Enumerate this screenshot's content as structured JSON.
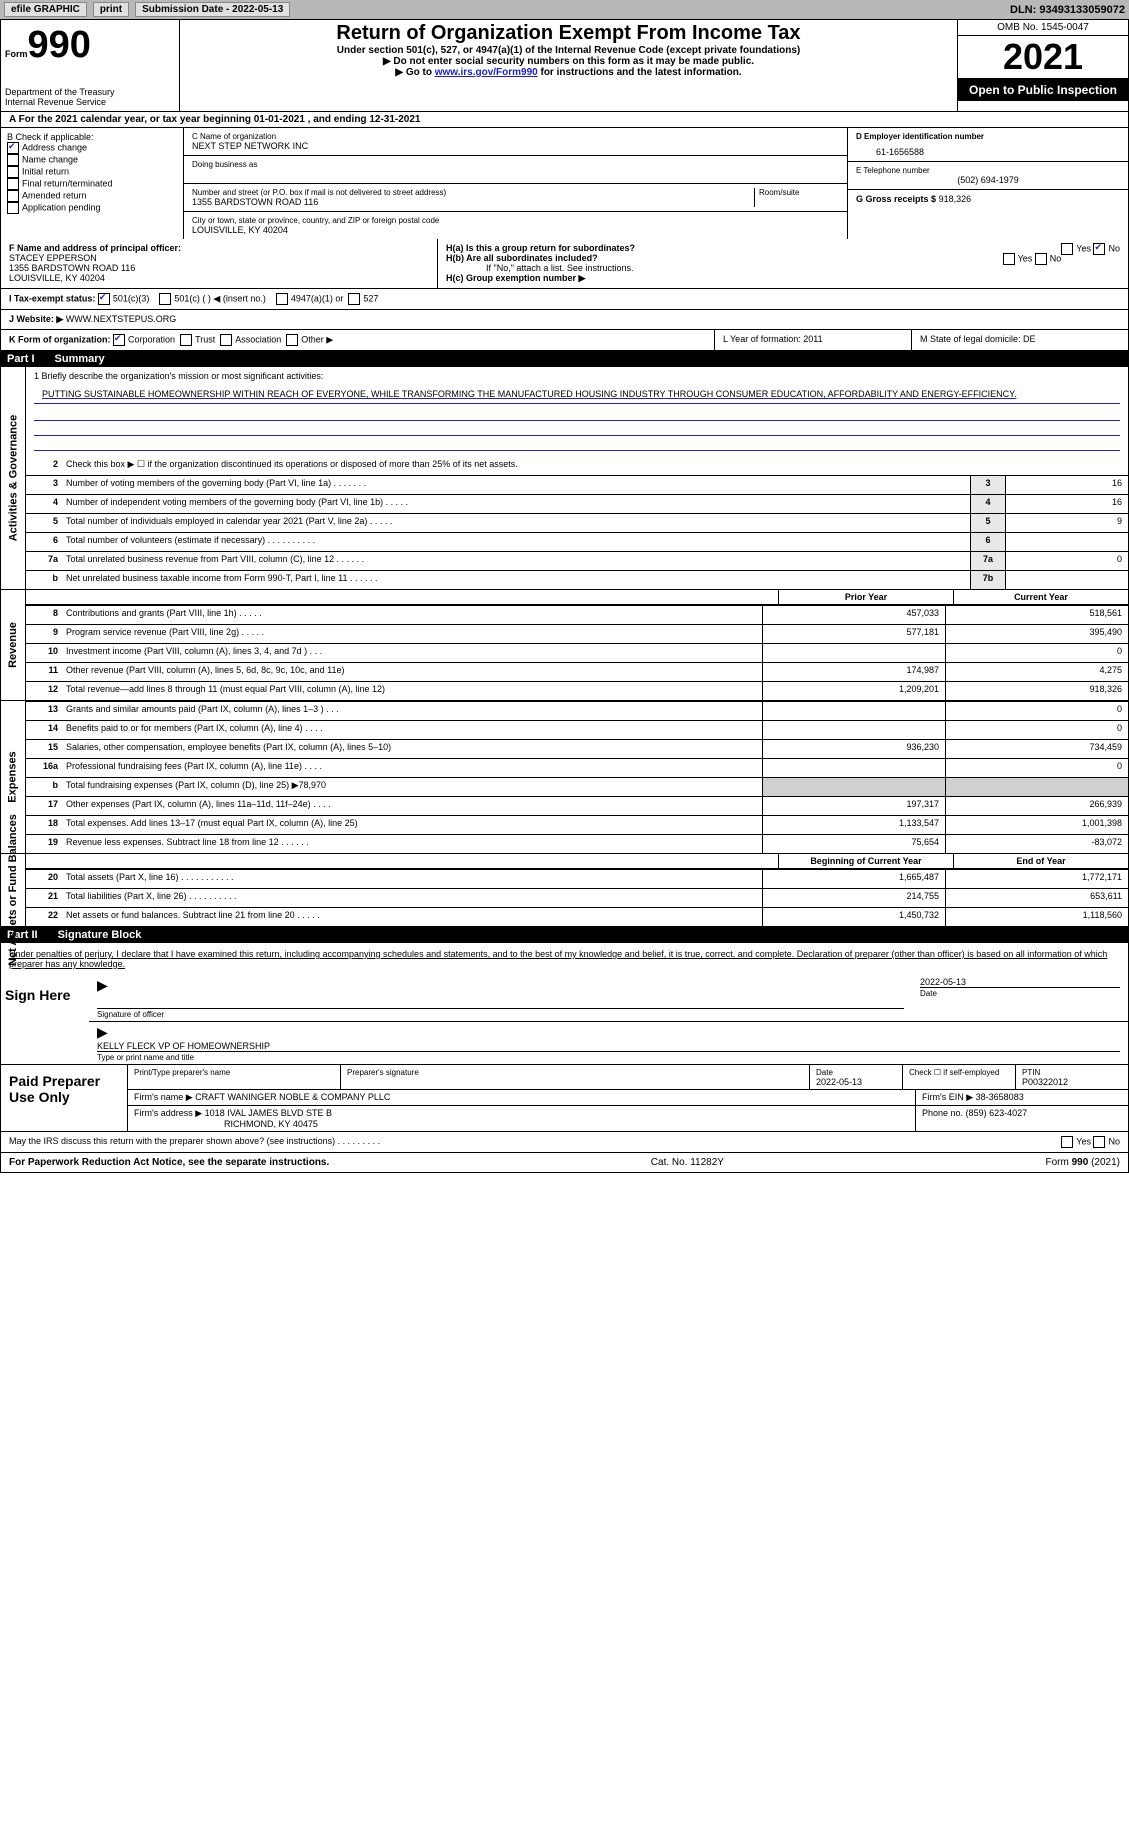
{
  "topbar": {
    "efile": "efile GRAPHIC",
    "print": "print",
    "sub_date_label": "Submission Date - 2022-05-13",
    "dln": "DLN: 93493133059072"
  },
  "header": {
    "form_label": "Form",
    "form_num": "990",
    "title": "Return of Organization Exempt From Income Tax",
    "sub1": "Under section 501(c), 527, or 4947(a)(1) of the Internal Revenue Code (except private foundations)",
    "sub2": "▶ Do not enter social security numbers on this form as it may be made public.",
    "sub3_pre": "▶ Go to ",
    "sub3_link": "www.irs.gov/Form990",
    "sub3_post": " for instructions and the latest information.",
    "dept": "Department of the Treasury",
    "irs": "Internal Revenue Service",
    "omb": "OMB No. 1545-0047",
    "year": "2021",
    "otp": "Open to Public Inspection"
  },
  "section_a": "A For the 2021 calendar year, or tax year beginning 01-01-2021    , and ending 12-31-2021",
  "col_b": {
    "title": "B Check if applicable:",
    "addr": "Address change",
    "name": "Name change",
    "init": "Initial return",
    "final": "Final return/terminated",
    "amend": "Amended return",
    "app": "Application pending"
  },
  "col_c": {
    "name_label": "C Name of organization",
    "name": "NEXT STEP NETWORK INC",
    "dba": "Doing business as",
    "street_label": "Number and street (or P.O. box if mail is not delivered to street address)",
    "room": "Room/suite",
    "street": "1355 BARDSTOWN ROAD 116",
    "city_label": "City or town, state or province, country, and ZIP or foreign postal code",
    "city": "LOUISVILLE, KY  40204"
  },
  "col_d": {
    "ein_label": "D Employer identification number",
    "ein": "61-1656588",
    "tel_label": "E Telephone number",
    "tel": "(502) 694-1979",
    "gross_label": "G Gross receipts $",
    "gross": "918,326"
  },
  "section_f": {
    "label": "F Name and address of principal officer:",
    "name": "STACEY EPPERSON",
    "addr1": "1355 BARDSTOWN ROAD 116",
    "addr2": "LOUISVILLE, KY  40204"
  },
  "section_h": {
    "ha": "H(a)  Is this a group return for subordinates?",
    "hb": "H(b)  Are all subordinates included?",
    "hb_note": "If \"No,\" attach a list. See instructions.",
    "hc": "H(c)  Group exemption number ▶",
    "yes": "Yes",
    "no": "No"
  },
  "section_i": {
    "label": "I   Tax-exempt status:",
    "o1": "501(c)(3)",
    "o2": "501(c) (   ) ◀ (insert no.)",
    "o3": "4947(a)(1) or",
    "o4": "527"
  },
  "section_j": {
    "label": "J   Website: ▶",
    "val": "WWW.NEXTSTEPUS.ORG"
  },
  "section_k": {
    "label": "K Form of organization:",
    "corp": "Corporation",
    "trust": "Trust",
    "assoc": "Association",
    "other": "Other ▶",
    "l": "L Year of formation: 2011",
    "m": "M State of legal domicile: DE"
  },
  "part1": {
    "label": "Part I",
    "title": "Summary"
  },
  "mission": {
    "q": "1   Briefly describe the organization's mission or most significant activities:",
    "text": "PUTTING SUSTAINABLE HOMEOWNERSHIP WITHIN REACH OF EVERYONE, WHILE TRANSFORMING THE MANUFACTURED HOUSING INDUSTRY THROUGH CONSUMER EDUCATION, AFFORDABILITY AND ENERGY-EFFICIENCY."
  },
  "gov_lines": [
    {
      "n": "2",
      "d": "Check this box ▶ ☐ if the organization discontinued its operations or disposed of more than 25% of its net assets.",
      "box": "",
      "val": ""
    },
    {
      "n": "3",
      "d": "Number of voting members of the governing body (Part VI, line 1a)  .    .    .    .    .    .    .",
      "box": "3",
      "val": "16"
    },
    {
      "n": "4",
      "d": "Number of independent voting members of the governing body (Part VI, line 1b)  .    .    .    .    .",
      "box": "4",
      "val": "16"
    },
    {
      "n": "5",
      "d": "Total number of individuals employed in calendar year 2021 (Part V, line 2a)  .    .    .    .    .",
      "box": "5",
      "val": "9"
    },
    {
      "n": "6",
      "d": "Total number of volunteers (estimate if necessary)   .    .    .    .    .    .    .    .    .    .",
      "box": "6",
      "val": ""
    },
    {
      "n": "7a",
      "d": "Total unrelated business revenue from Part VIII, column (C), line 12   .    .    .    .    .    .",
      "box": "7a",
      "val": "0"
    },
    {
      "n": "b",
      "d": "Net unrelated business taxable income from Form 990-T, Part I, line 11  .    .    .    .    .    .",
      "box": "7b",
      "val": ""
    }
  ],
  "rev_hdr": {
    "prior": "Prior Year",
    "curr": "Current Year"
  },
  "revenue": [
    {
      "n": "8",
      "d": "Contributions and grants (Part VIII, line 1h)   .    .    .    .    .",
      "p": "457,033",
      "c": "518,561"
    },
    {
      "n": "9",
      "d": "Program service revenue (Part VIII, line 2g)   .    .    .    .    .",
      "p": "577,181",
      "c": "395,490"
    },
    {
      "n": "10",
      "d": "Investment income (Part VIII, column (A), lines 3, 4, and 7d )   .    .    .",
      "p": "",
      "c": "0"
    },
    {
      "n": "11",
      "d": "Other revenue (Part VIII, column (A), lines 5, 6d, 8c, 9c, 10c, and 11e)",
      "p": "174,987",
      "c": "4,275"
    },
    {
      "n": "12",
      "d": "Total revenue—add lines 8 through 11 (must equal Part VIII, column (A), line 12)",
      "p": "1,209,201",
      "c": "918,326"
    }
  ],
  "expenses": [
    {
      "n": "13",
      "d": "Grants and similar amounts paid (Part IX, column (A), lines 1–3 )  .    .    .",
      "p": "",
      "c": "0"
    },
    {
      "n": "14",
      "d": "Benefits paid to or for members (Part IX, column (A), line 4)  .    .    .    .",
      "p": "",
      "c": "0"
    },
    {
      "n": "15",
      "d": "Salaries, other compensation, employee benefits (Part IX, column (A), lines 5–10)",
      "p": "936,230",
      "c": "734,459"
    },
    {
      "n": "16a",
      "d": "Professional fundraising fees (Part IX, column (A), line 11e)  .    .    .    .",
      "p": "",
      "c": "0"
    },
    {
      "n": "b",
      "d": "Total fundraising expenses (Part IX, column (D), line 25) ▶78,970",
      "p": "gray",
      "c": "gray"
    },
    {
      "n": "17",
      "d": "Other expenses (Part IX, column (A), lines 11a–11d, 11f–24e)  .    .    .    .",
      "p": "197,317",
      "c": "266,939"
    },
    {
      "n": "18",
      "d": "Total expenses. Add lines 13–17 (must equal Part IX, column (A), line 25)",
      "p": "1,133,547",
      "c": "1,001,398"
    },
    {
      "n": "19",
      "d": "Revenue less expenses. Subtract line 18 from line 12  .    .    .    .    .    .",
      "p": "75,654",
      "c": "-83,072"
    }
  ],
  "na_hdr": {
    "prior": "Beginning of Current Year",
    "curr": "End of Year"
  },
  "netassets": [
    {
      "n": "20",
      "d": "Total assets (Part X, line 16)  .    .    .    .    .    .    .    .    .    .    .",
      "p": "1,665,487",
      "c": "1,772,171"
    },
    {
      "n": "21",
      "d": "Total liabilities (Part X, line 26)  .    .    .    .    .    .    .    .    .    .",
      "p": "214,755",
      "c": "653,611"
    },
    {
      "n": "22",
      "d": "Net assets or fund balances. Subtract line 21 from line 20  .    .    .    .    .",
      "p": "1,450,732",
      "c": "1,118,560"
    }
  ],
  "part2": {
    "label": "Part II",
    "title": "Signature Block"
  },
  "penalty": "Under penalties of perjury, I declare that I have examined this return, including accompanying schedules and statements, and to the best of my knowledge and belief, it is true, correct, and complete. Declaration of preparer (other than officer) is based on all information of which preparer has any knowledge.",
  "sign": {
    "here": "Sign Here",
    "sig_officer": "Signature of officer",
    "date": "Date",
    "date_val": "2022-05-13",
    "name": "KELLY FLECK VP OF HOMEOWNERSHIP",
    "type_name": "Type or print name and title"
  },
  "paid": {
    "title": "Paid Preparer Use Only",
    "prep_name": "Print/Type preparer's name",
    "prep_sig": "Preparer's signature",
    "date_lbl": "Date",
    "date_val": "2022-05-13",
    "check": "Check ☐ if self-employed",
    "ptin_lbl": "PTIN",
    "ptin": "P00322012",
    "firm_name_lbl": "Firm's name     ▶",
    "firm_name": "CRAFT WANINGER NOBLE & COMPANY PLLC",
    "firm_ein_lbl": "Firm's EIN ▶",
    "firm_ein": "38-3658083",
    "firm_addr_lbl": "Firm's address ▶",
    "firm_addr1": "1018 IVAL JAMES BLVD STE B",
    "firm_addr2": "RICHMOND, KY  40475",
    "phone_lbl": "Phone no.",
    "phone": "(859) 623-4027"
  },
  "discuss": "May the IRS discuss this return with the preparer shown above? (see instructions)  .    .    .    .    .    .    .    .    .",
  "footer": {
    "pra": "For Paperwork Reduction Act Notice, see the separate instructions.",
    "cat": "Cat. No. 11282Y",
    "form": "Form 990 (2021)"
  },
  "tabs": {
    "gov": "Activities & Governance",
    "rev": "Revenue",
    "exp": "Expenses",
    "na": "Net Assets or Fund Balances"
  }
}
